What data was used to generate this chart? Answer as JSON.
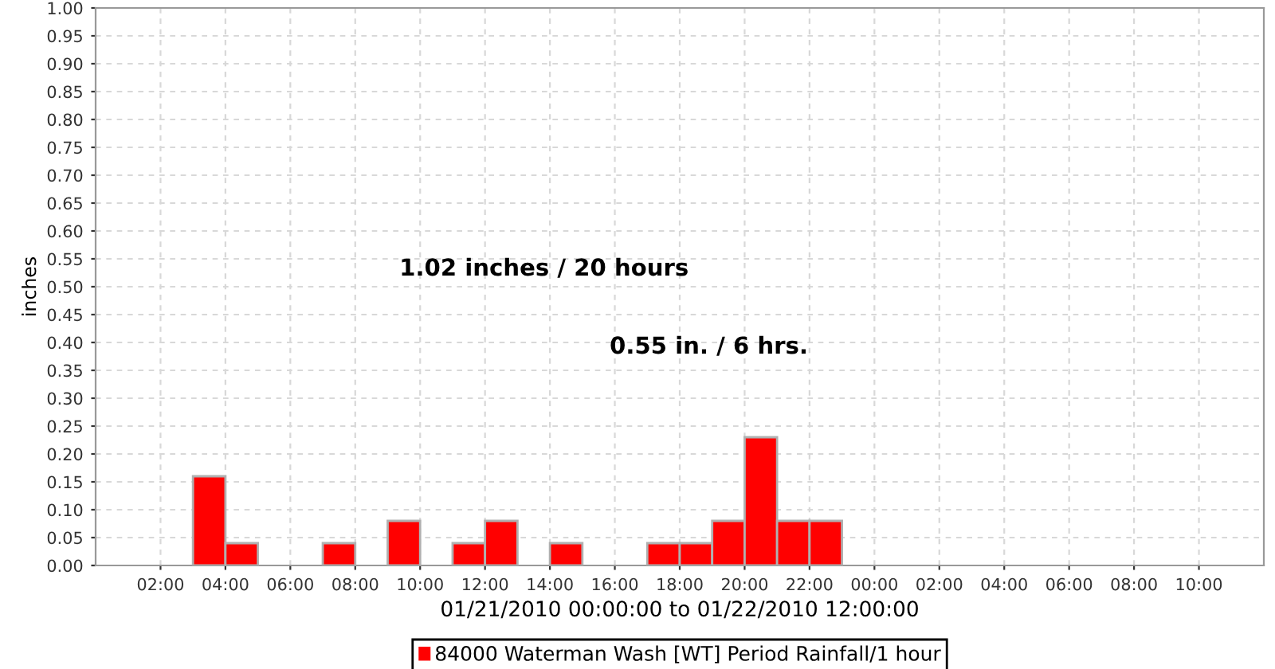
{
  "chart_data": {
    "type": "bar",
    "xlabel": "01/21/2010 00:00:00 to 01/22/2010 12:00:00",
    "ylabel": "inches",
    "annotations": [
      "1.02 inches / 20 hours",
      "0.55 in. / 6 hrs."
    ],
    "x": [
      "2010-01-21T03:30",
      "2010-01-21T04:30",
      "2010-01-21T07:30",
      "2010-01-21T09:30",
      "2010-01-21T11:30",
      "2010-01-21T12:30",
      "2010-01-21T14:30",
      "2010-01-21T17:30",
      "2010-01-21T18:30",
      "2010-01-21T19:30",
      "2010-01-21T20:30",
      "2010-01-21T21:30",
      "2010-01-21T22:30"
    ],
    "series": [
      {
        "name": "84000 Waterman Wash [WT] Period Rainfall/1 hour",
        "color": "#ff0000",
        "values": [
          0.16,
          0.04,
          0.04,
          0.08,
          0.04,
          0.08,
          0.04,
          0.04,
          0.04,
          0.08,
          0.23,
          0.08,
          0.08
        ]
      }
    ],
    "xlim": [
      "2010-01-21T00:00",
      "2010-01-22T12:00"
    ],
    "xticks": [
      {
        "value": "2010-01-21T02:00",
        "label": "02:00"
      },
      {
        "value": "2010-01-21T04:00",
        "label": "04:00"
      },
      {
        "value": "2010-01-21T06:00",
        "label": "06:00"
      },
      {
        "value": "2010-01-21T08:00",
        "label": "08:00"
      },
      {
        "value": "2010-01-21T10:00",
        "label": "10:00"
      },
      {
        "value": "2010-01-21T12:00",
        "label": "12:00"
      },
      {
        "value": "2010-01-21T14:00",
        "label": "14:00"
      },
      {
        "value": "2010-01-21T16:00",
        "label": "16:00"
      },
      {
        "value": "2010-01-21T18:00",
        "label": "18:00"
      },
      {
        "value": "2010-01-21T20:00",
        "label": "20:00"
      },
      {
        "value": "2010-01-21T22:00",
        "label": "22:00"
      },
      {
        "value": "2010-01-22T00:00",
        "label": "00:00"
      },
      {
        "value": "2010-01-22T02:00",
        "label": "02:00"
      },
      {
        "value": "2010-01-22T04:00",
        "label": "04:00"
      },
      {
        "value": "2010-01-22T06:00",
        "label": "06:00"
      },
      {
        "value": "2010-01-22T08:00",
        "label": "08:00"
      },
      {
        "value": "2010-01-22T10:00",
        "label": "10:00"
      }
    ],
    "ylim": [
      0,
      1
    ],
    "yticks": [
      {
        "value": 0,
        "label": "0.00"
      },
      {
        "value": 0.05,
        "label": "0.05"
      },
      {
        "value": 0.1,
        "label": "0.10"
      },
      {
        "value": 0.15,
        "label": "0.15"
      },
      {
        "value": 0.2,
        "label": "0.20"
      },
      {
        "value": 0.25,
        "label": "0.25"
      },
      {
        "value": 0.3,
        "label": "0.30"
      },
      {
        "value": 0.35,
        "label": "0.35"
      },
      {
        "value": 0.4,
        "label": "0.40"
      },
      {
        "value": 0.45,
        "label": "0.45"
      },
      {
        "value": 0.5,
        "label": "0.50"
      },
      {
        "value": 0.55,
        "label": "0.55"
      },
      {
        "value": 0.6,
        "label": "0.60"
      },
      {
        "value": 0.65,
        "label": "0.65"
      },
      {
        "value": 0.7,
        "label": "0.70"
      },
      {
        "value": 0.75,
        "label": "0.75"
      },
      {
        "value": 0.8,
        "label": "0.80"
      },
      {
        "value": 0.85,
        "label": "0.85"
      },
      {
        "value": 0.9,
        "label": "0.90"
      },
      {
        "value": 0.95,
        "label": "0.95"
      },
      {
        "value": 1,
        "label": "1.00"
      }
    ],
    "grid": true,
    "legend": "bottom"
  }
}
